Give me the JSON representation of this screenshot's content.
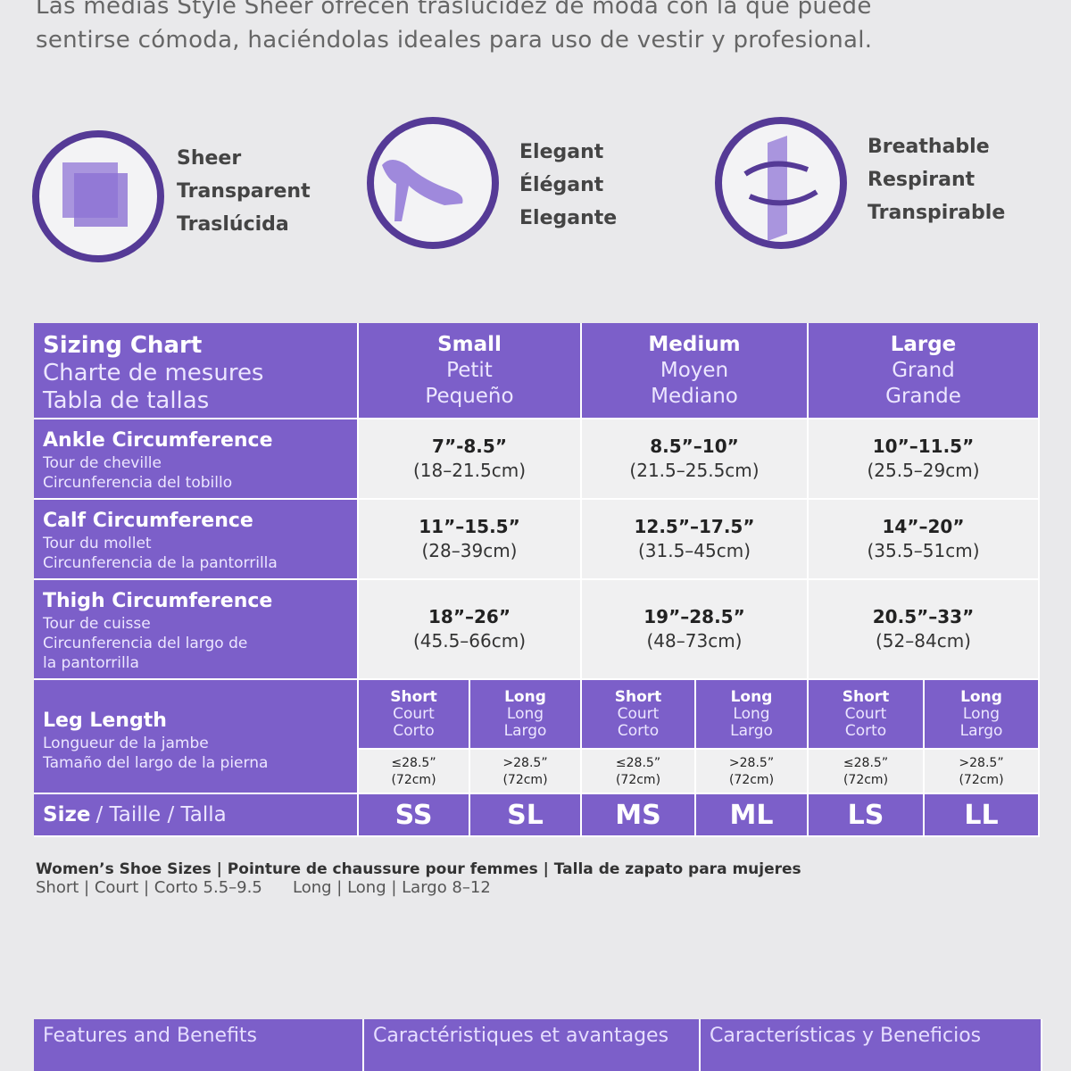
{
  "intro": [
    "Las medias Style Sheer ofrecen traslucidez de moda con la que puede",
    "sentirse cómoda, haciéndolas ideales para uso de vestir y profesional."
  ],
  "features": [
    {
      "lines": [
        "Sheer",
        "Transparent",
        "Traslúcida"
      ]
    },
    {
      "lines": [
        "Elegant",
        "Élégant",
        "Elegante"
      ]
    },
    {
      "lines": [
        "Breathable",
        "Respirant",
        "Transpirable"
      ]
    }
  ],
  "table": {
    "header": [
      "Sizing Chart",
      "Charte de mesures",
      "Tabla de tallas"
    ],
    "sizes": [
      [
        "Small",
        "Petit",
        "Pequeño"
      ],
      [
        "Medium",
        "Moyen",
        "Mediano"
      ],
      [
        "Large",
        "Grand",
        "Grande"
      ]
    ],
    "rows": [
      {
        "label": [
          "Ankle Circumference",
          "Tour de cheville",
          "Circunferencia del tobillo"
        ],
        "values": [
          [
            "7”-8.5”",
            "(18–21.5cm)"
          ],
          [
            "8.5”–10”",
            "(21.5–25.5cm)"
          ],
          [
            "10”–11.5”",
            "(25.5–29cm)"
          ]
        ]
      },
      {
        "label": [
          "Calf Circumference",
          "Tour du mollet",
          "Circunferencia de la pantorrilla"
        ],
        "values": [
          [
            "11”–15.5”",
            "(28–39cm)"
          ],
          [
            "12.5”–17.5”",
            "(31.5–45cm)"
          ],
          [
            "14”–20”",
            "(35.5–51cm)"
          ]
        ]
      },
      {
        "label": [
          "Thigh Circumference",
          "Tour de cuisse",
          "Circunferencia del largo de",
          "la pantorrilla"
        ],
        "values": [
          [
            "18”–26”",
            "(45.5–66cm)"
          ],
          [
            "19”–28.5”",
            "(48–73cm)"
          ],
          [
            "20.5”–33”",
            "(52–84cm)"
          ]
        ]
      }
    ],
    "leg_length": {
      "label": [
        "Leg Length",
        "Longueur de la jambe",
        "Tamaño del largo de la pierna"
      ],
      "columns": [
        {
          "lines": [
            "Short",
            "Court",
            "Corto"
          ],
          "measure": [
            "≤28.5”",
            "(72cm)"
          ]
        },
        {
          "lines": [
            "Long",
            "Long",
            "Largo"
          ],
          "measure": [
            ">28.5”",
            "(72cm)"
          ]
        },
        {
          "lines": [
            "Short",
            "Court",
            "Corto"
          ],
          "measure": [
            "≤28.5”",
            "(72cm)"
          ]
        },
        {
          "lines": [
            "Long",
            "Long",
            "Largo"
          ],
          "measure": [
            ">28.5”",
            "(72cm)"
          ]
        },
        {
          "lines": [
            "Short",
            "Court",
            "Corto"
          ],
          "measure": [
            "≤28.5”",
            "(72cm)"
          ]
        },
        {
          "lines": [
            "Long",
            "Long",
            "Largo"
          ],
          "measure": [
            ">28.5”",
            "(72cm)"
          ]
        }
      ]
    },
    "size_row": {
      "label": "Size",
      "label_rest": "/ Taille / Talla",
      "codes": [
        "SS",
        "SL",
        "MS",
        "ML",
        "LS",
        "LL"
      ]
    }
  },
  "shoe_sizes": {
    "title": "Women’s Shoe Sizes | Pointure de chaussure pour femmes | Talla de zapato para mujeres",
    "short": "Short | Court | Corto 5.5–9.5",
    "long": "Long | Long | Largo 8–12"
  },
  "bottom": [
    "Features and Benefits",
    "Caractéristiques et avantages",
    "Características y Beneficios"
  ]
}
